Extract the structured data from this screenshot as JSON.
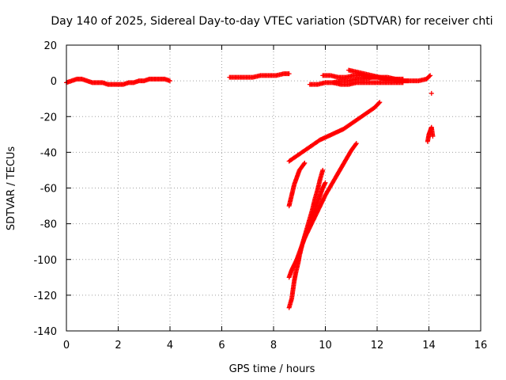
{
  "chart_data": {
    "type": "scatter",
    "title": "Day 140 of 2025, Sidereal Day-to-day VTEC variation (SDTVAR) for receiver chti",
    "xlabel": "GPS time / hours",
    "ylabel": "SDTVAR / TECUs",
    "xlim": [
      0,
      16
    ],
    "ylim": [
      -140,
      20
    ],
    "xticks": [
      0,
      2,
      4,
      6,
      8,
      10,
      12,
      14,
      16
    ],
    "yticks": [
      -140,
      -120,
      -100,
      -80,
      -60,
      -40,
      -20,
      0,
      20
    ],
    "grid": true,
    "legend": "none",
    "marker": "plus",
    "color": "#ff0000",
    "series": [
      {
        "segments": [
          {
            "x": [
              0.0,
              0.2,
              0.4,
              0.6,
              0.8,
              1.0,
              1.2,
              1.4,
              1.6,
              1.8,
              2.0,
              2.2,
              2.4,
              2.6,
              2.8,
              3.0,
              3.2,
              3.4,
              3.6,
              3.8,
              4.0
            ],
            "y": [
              -1,
              0,
              1,
              1,
              0,
              -1,
              -1,
              -1,
              -2,
              -2,
              -2,
              -2,
              -1,
              -1,
              0,
              0,
              1,
              1,
              1,
              1,
              0
            ]
          },
          {
            "x": [
              6.3,
              6.6,
              6.9,
              7.2,
              7.5,
              7.8,
              8.1,
              8.4,
              8.6
            ],
            "y": [
              2,
              2,
              2,
              2,
              3,
              3,
              3,
              4,
              4
            ]
          },
          {
            "x": [
              9.4,
              9.7,
              10.0,
              10.3,
              10.6,
              10.9,
              11.2,
              11.5,
              11.8,
              12.1,
              12.4,
              12.7,
              13.0,
              13.3,
              13.6,
              13.9,
              14.05
            ],
            "y": [
              -2,
              -2,
              -1,
              -1,
              0,
              0,
              1,
              1,
              2,
              2,
              1,
              1,
              0,
              0,
              0,
              1,
              3
            ]
          },
          {
            "x": [
              9.9,
              10.2,
              10.5,
              10.8,
              11.1,
              11.4,
              11.7,
              12.0,
              12.3,
              12.6,
              12.9,
              13.2
            ],
            "y": [
              3,
              3,
              2,
              2,
              3,
              3,
              2,
              2,
              1,
              1,
              0,
              0
            ]
          },
          {
            "x": [
              10.3,
              10.6,
              10.9,
              11.2,
              11.5,
              11.8,
              12.1,
              12.4,
              12.7,
              13.0
            ],
            "y": [
              -1,
              -2,
              -2,
              -1,
              -1,
              -1,
              -1,
              -1,
              -1,
              -1
            ]
          },
          {
            "x": [
              10.9,
              11.2,
              11.5,
              11.8,
              12.1,
              12.4,
              12.7,
              13.0
            ],
            "y": [
              6,
              5,
              4,
              3,
              2,
              2,
              1,
              1
            ]
          },
          {
            "x": [
              8.6,
              8.9,
              9.2,
              9.5,
              9.8,
              10.1,
              10.4,
              10.7,
              11.0,
              11.3,
              11.6,
              11.9,
              12.1
            ],
            "y": [
              -45,
              -42,
              -39,
              -36,
              -33,
              -31,
              -29,
              -27,
              -24,
              -21,
              -18,
              -15,
              -12
            ]
          },
          {
            "x": [
              8.6,
              8.7,
              8.8,
              8.9,
              9.0,
              9.1,
              9.2
            ],
            "y": [
              -70,
              -64,
              -58,
              -54,
              -50,
              -48,
              -46
            ]
          },
          {
            "x": [
              8.6,
              8.7,
              8.75,
              8.8,
              8.85,
              8.9,
              8.95,
              9.0,
              9.1,
              9.2,
              9.3,
              9.4,
              9.5,
              9.6,
              9.7,
              9.8,
              9.9
            ],
            "y": [
              -127,
              -122,
              -117,
              -112,
              -108,
              -105,
              -102,
              -98,
              -92,
              -87,
              -82,
              -77,
              -72,
              -66,
              -61,
              -55,
              -50
            ]
          },
          {
            "x": [
              8.6,
              8.7,
              8.8,
              8.9,
              9.0,
              9.1,
              9.2,
              9.3,
              9.4,
              9.5,
              9.6,
              9.7,
              9.8,
              9.9,
              10.0
            ],
            "y": [
              -110,
              -106,
              -103,
              -100,
              -96,
              -92,
              -88,
              -84,
              -80,
              -76,
              -72,
              -68,
              -64,
              -60,
              -57
            ]
          },
          {
            "x": [
              9.2,
              9.4,
              9.6,
              9.8,
              10.0,
              10.2,
              10.4,
              10.6,
              10.8,
              11.0,
              11.2
            ],
            "y": [
              -88,
              -82,
              -76,
              -70,
              -64,
              -59,
              -54,
              -49,
              -44,
              -39,
              -35
            ]
          },
          {
            "x": [
              13.95,
              14.0,
              14.05,
              14.1,
              14.15
            ],
            "y": [
              -34,
              -30,
              -28,
              -26,
              -31
            ]
          },
          {
            "x": [
              14.1
            ],
            "y": [
              -7
            ]
          }
        ]
      }
    ]
  }
}
